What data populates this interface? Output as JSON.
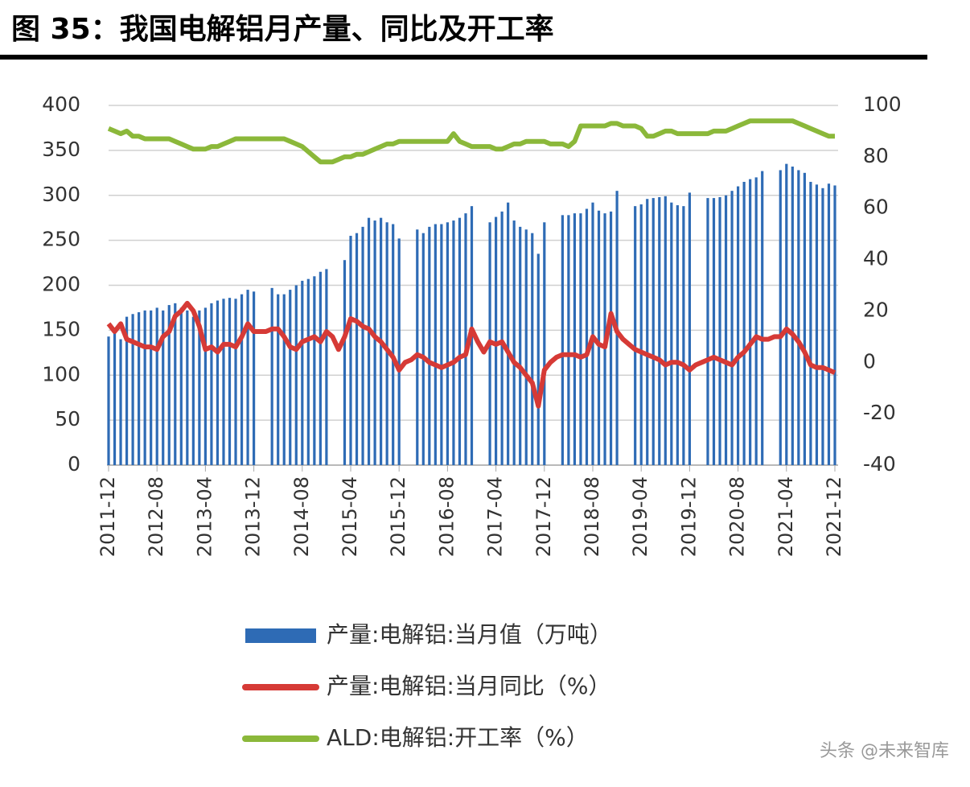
{
  "chart_data": {
    "type": "bar-line",
    "title": "图 35：我国电解铝月产量、同比及开工率",
    "watermark": "头条 @未来智库",
    "categories": [
      "2011-12",
      null,
      null,
      null,
      null,
      null,
      null,
      null,
      "2012-08",
      null,
      null,
      null,
      null,
      null,
      null,
      null,
      "2013-04",
      null,
      null,
      null,
      null,
      null,
      null,
      null,
      "2013-12",
      null,
      null,
      null,
      null,
      null,
      null,
      null,
      "2014-08",
      null,
      null,
      null,
      null,
      null,
      null,
      null,
      "2015-04",
      null,
      null,
      null,
      null,
      null,
      null,
      null,
      "2015-12",
      null,
      null,
      null,
      null,
      null,
      null,
      null,
      "2016-08",
      null,
      null,
      null,
      null,
      null,
      null,
      null,
      "2017-04",
      null,
      null,
      null,
      null,
      null,
      null,
      null,
      "2017-12",
      null,
      null,
      null,
      null,
      null,
      null,
      null,
      "2018-08",
      null,
      null,
      null,
      null,
      null,
      null,
      null,
      "2019-04",
      null,
      null,
      null,
      null,
      null,
      null,
      null,
      "2019-12",
      null,
      null,
      null,
      null,
      null,
      null,
      null,
      "2020-08",
      null,
      null,
      null,
      null,
      null,
      null,
      null,
      "2021-04",
      null,
      null,
      null,
      null,
      null,
      null,
      null,
      "2021-12"
    ],
    "series": [
      {
        "name": "产量:电解铝:当月值（万吨）",
        "kind": "bar",
        "color": "#2e6bb5",
        "axis": "y",
        "values": [
          143,
          150,
          140,
          165,
          168,
          170,
          172,
          172,
          175,
          172,
          178,
          180,
          175,
          172,
          165,
          172,
          175,
          180,
          183,
          185,
          186,
          185,
          190,
          195,
          193,
          null,
          null,
          197,
          190,
          190,
          195,
          200,
          205,
          207,
          210,
          215,
          218,
          null,
          null,
          228,
          255,
          258,
          265,
          275,
          272,
          275,
          270,
          268,
          252,
          null,
          null,
          262,
          258,
          265,
          268,
          268,
          270,
          272,
          275,
          280,
          288,
          null,
          null,
          270,
          276,
          282,
          292,
          272,
          265,
          262,
          258,
          235,
          270,
          null,
          null,
          278,
          278,
          280,
          280,
          285,
          292,
          283,
          280,
          282,
          305,
          null,
          null,
          288,
          290,
          296,
          297,
          298,
          299,
          292,
          289,
          288,
          303,
          null,
          null,
          297,
          297,
          298,
          300,
          305,
          310,
          315,
          318,
          320,
          327,
          null,
          null,
          328,
          335,
          332,
          328,
          325,
          315,
          312,
          308,
          313,
          311
        ]
      },
      {
        "name": "产量:电解铝:当月同比（%）",
        "kind": "line",
        "color": "#d63a36",
        "axis": "y2",
        "values": [
          15,
          12,
          15,
          9,
          8,
          7,
          6,
          6,
          5,
          10,
          12,
          18,
          20,
          23,
          20,
          14,
          5,
          6,
          4,
          7,
          7,
          6,
          10,
          15,
          12,
          12,
          12,
          13,
          13,
          10,
          6,
          5,
          8,
          9,
          10,
          8,
          12,
          10,
          5,
          10,
          17,
          16,
          14,
          13,
          10,
          8,
          5,
          2,
          -3,
          0,
          1,
          3,
          2,
          0,
          -1,
          -2,
          -1,
          0,
          2,
          3,
          13,
          8,
          4,
          8,
          7,
          8,
          4,
          0,
          -2,
          -5,
          -8,
          -17,
          -3,
          0,
          2,
          3,
          3,
          3,
          2,
          3,
          10,
          7,
          6,
          19,
          12,
          9,
          7,
          5,
          4,
          3,
          2,
          1,
          -1,
          0,
          0,
          -1,
          -3,
          -1,
          0,
          1,
          2,
          1,
          0,
          -1,
          2,
          4,
          7,
          10,
          9,
          9,
          10,
          10,
          13,
          11,
          8,
          4,
          -1,
          -2,
          -2,
          -3,
          -4
        ]
      },
      {
        "name": "ALD:电解铝:开工率（%）",
        "kind": "line",
        "color": "#8bb83a",
        "axis": "y2",
        "values": [
          91,
          90,
          89,
          90,
          88,
          88,
          87,
          87,
          87,
          87,
          87,
          86,
          85,
          84,
          83,
          83,
          83,
          84,
          84,
          85,
          86,
          87,
          87,
          87,
          87,
          87,
          87,
          87,
          87,
          87,
          86,
          85,
          84,
          82,
          80,
          78,
          78,
          78,
          79,
          80,
          80,
          81,
          81,
          82,
          83,
          84,
          85,
          85,
          86,
          86,
          86,
          86,
          86,
          86,
          86,
          86,
          86,
          89,
          86,
          85,
          84,
          84,
          84,
          84,
          83,
          83,
          84,
          85,
          85,
          86,
          86,
          86,
          86,
          85,
          85,
          85,
          84,
          86,
          92,
          92,
          92,
          92,
          92,
          93,
          93,
          92,
          92,
          92,
          91,
          88,
          88,
          89,
          90,
          90,
          89,
          89,
          89,
          89,
          89,
          89,
          90,
          90,
          90,
          91,
          92,
          93,
          94,
          94,
          94,
          94,
          94,
          94,
          94,
          94,
          93,
          92,
          91,
          90,
          89,
          88,
          88
        ]
      }
    ],
    "ylim": [
      0,
      400
    ],
    "yticks": [
      0,
      50,
      100,
      150,
      200,
      250,
      300,
      350,
      400
    ],
    "y2lim": [
      -40,
      100
    ],
    "y2ticks": [
      -40,
      -20,
      0,
      20,
      40,
      60,
      80,
      100
    ],
    "grid": true
  }
}
